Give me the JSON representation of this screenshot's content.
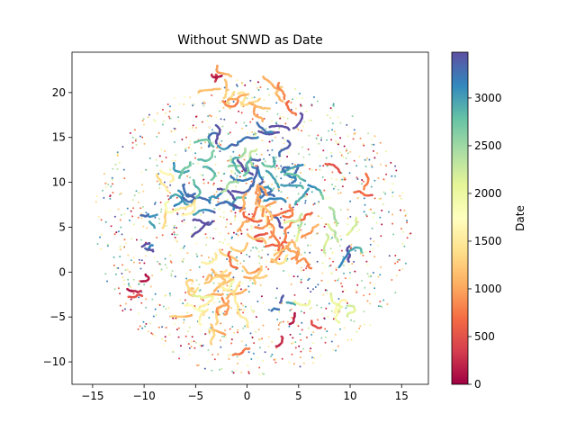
{
  "chart_data": {
    "type": "scatter",
    "title": "Without SNWD as Date",
    "xlabel": "",
    "ylabel": "",
    "xlim": [
      -17.0,
      17.6
    ],
    "ylim": [
      -12.5,
      24.5
    ],
    "xticks": [
      -15,
      -10,
      -5,
      0,
      5,
      10,
      15
    ],
    "yticks": [
      -10,
      -5,
      0,
      5,
      10,
      15,
      20
    ],
    "grid": false,
    "legend": "none",
    "colorbar": {
      "label": "Date",
      "range": [
        0,
        3480
      ],
      "ticks": [
        0,
        500,
        1000,
        1500,
        2000,
        2500,
        3000
      ],
      "colormap": "Spectral",
      "stops": [
        "#9e0142",
        "#d53e4f",
        "#f46d43",
        "#fdae61",
        "#fee08b",
        "#ffffbf",
        "#e6f598",
        "#abdda4",
        "#66c2a5",
        "#3288bd",
        "#5e4fa2"
      ]
    },
    "cloud": {
      "center": [
        0.5,
        5.0
      ],
      "radius": [
        15.5,
        16.5
      ]
    },
    "dense_clusters": [
      {
        "x": 1.5,
        "y": 10.0,
        "spread": 3.5,
        "date": 3150,
        "n": 500
      },
      {
        "x": -4.5,
        "y": 6.5,
        "spread": 2.0,
        "date": 3250,
        "n": 180
      },
      {
        "x": -3.5,
        "y": 14.5,
        "spread": 1.2,
        "date": 3300,
        "n": 100
      },
      {
        "x": 3.5,
        "y": 15.5,
        "spread": 1.0,
        "date": 3150,
        "n": 70
      },
      {
        "x": -3.5,
        "y": 11.0,
        "spread": 2.5,
        "date": 2600,
        "n": 160
      },
      {
        "x": 9.5,
        "y": 2.0,
        "spread": 0.6,
        "date": 3300,
        "n": 50
      },
      {
        "x": -10.0,
        "y": 2.5,
        "spread": 0.5,
        "date": 3300,
        "n": 25
      },
      {
        "x": -9.5,
        "y": 6.5,
        "spread": 0.6,
        "date": 2900,
        "n": 25
      },
      {
        "x": 3.5,
        "y": -4.0,
        "spread": 0.6,
        "date": 3250,
        "n": 25
      },
      {
        "x": -7.0,
        "y": 10.0,
        "spread": 1.2,
        "date": 3100,
        "n": 60
      },
      {
        "x": 2.0,
        "y": 4.5,
        "spread": 3.5,
        "date": 1000,
        "n": 550
      },
      {
        "x": -2.0,
        "y": -1.5,
        "spread": 3.0,
        "date": 1200,
        "n": 420
      },
      {
        "x": -1.0,
        "y": 19.5,
        "spread": 2.5,
        "date": 1300,
        "n": 190
      },
      {
        "x": 2.0,
        "y": 20.0,
        "spread": 1.5,
        "date": 600,
        "n": 70
      },
      {
        "x": -2.5,
        "y": 22.0,
        "spread": 0.6,
        "date": 500,
        "n": 25
      },
      {
        "x": -7.0,
        "y": 7.5,
        "spread": 2.0,
        "date": 1600,
        "n": 120
      },
      {
        "x": 7.0,
        "y": 5.5,
        "spread": 2.0,
        "date": 2200,
        "n": 120
      },
      {
        "x": 11.0,
        "y": 10.0,
        "spread": 2.0,
        "date": 450,
        "n": 50
      },
      {
        "x": -10.0,
        "y": -2.0,
        "spread": 1.0,
        "date": 450,
        "n": 40
      },
      {
        "x": -2.0,
        "y": -8.5,
        "spread": 1.5,
        "date": 900,
        "n": 50
      },
      {
        "x": 4.0,
        "y": -6.0,
        "spread": 1.5,
        "date": 400,
        "n": 40
      },
      {
        "x": -5.0,
        "y": -4.0,
        "spread": 2.0,
        "date": 1400,
        "n": 90
      },
      {
        "x": 8.0,
        "y": -3.0,
        "spread": 2.0,
        "date": 1800,
        "n": 90
      }
    ]
  }
}
